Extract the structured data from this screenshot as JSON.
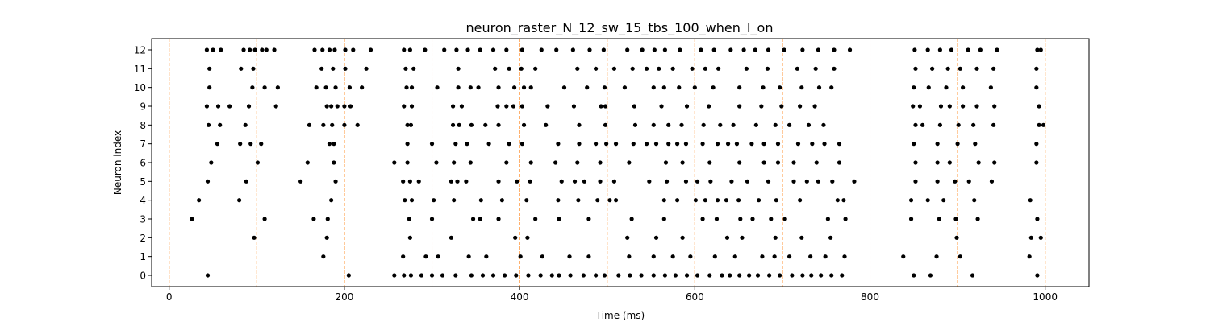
{
  "chart_data": {
    "type": "scatter",
    "title": "neuron_raster_N_12_sw_15_tbs_100_when_I_on",
    "xlabel": "Time (ms)",
    "ylabel": "Neuron index",
    "xlim": [
      -20,
      1050
    ],
    "ylim": [
      -0.6,
      12.6
    ],
    "xticks": [
      0,
      200,
      400,
      600,
      800,
      1000
    ],
    "yticks": [
      0,
      1,
      2,
      3,
      4,
      5,
      6,
      7,
      8,
      9,
      10,
      11,
      12
    ],
    "grid": false,
    "marker_color": "#000000",
    "vline_color": "#ff7f0e",
    "vlines": [
      0,
      100,
      200,
      300,
      400,
      500,
      600,
      700,
      800,
      900,
      1000
    ],
    "spikes": [
      {
        "neuron": 0,
        "times": [
          44,
          205,
          257,
          268,
          276,
          288,
          300,
          312,
          327,
          345,
          358,
          370,
          383,
          396,
          410,
          424,
          437,
          445,
          458,
          473,
          487,
          497,
          513,
          526,
          539,
          553,
          566,
          578,
          591,
          603,
          617,
          631,
          640,
          651,
          662,
          672,
          685,
          697,
          711,
          723,
          733,
          744,
          756,
          768,
          850,
          869,
          917,
          991
        ]
      },
      {
        "neuron": 1,
        "times": [
          176,
          267,
          293,
          307,
          342,
          362,
          401,
          426,
          457,
          479,
          525,
          553,
          575,
          595,
          623,
          646,
          677,
          691,
          708,
          732,
          749,
          771,
          838,
          876,
          903,
          982
        ]
      },
      {
        "neuron": 2,
        "times": [
          97,
          180,
          275,
          322,
          395,
          409,
          523,
          556,
          586,
          637,
          654,
          692,
          722,
          755,
          899,
          984,
          995
        ]
      },
      {
        "neuron": 3,
        "times": [
          26,
          109,
          165,
          181,
          274,
          300,
          347,
          355,
          376,
          418,
          445,
          479,
          528,
          565,
          609,
          625,
          652,
          666,
          687,
          703,
          752,
          772,
          847,
          879,
          898,
          923,
          991
        ]
      },
      {
        "neuron": 4,
        "times": [
          34,
          80,
          185,
          269,
          277,
          302,
          325,
          356,
          380,
          408,
          444,
          467,
          489,
          503,
          510,
          565,
          580,
          601,
          612,
          626,
          636,
          650,
          673,
          693,
          720,
          763,
          770,
          847,
          866,
          884,
          919,
          983
        ]
      },
      {
        "neuron": 5,
        "times": [
          44,
          88,
          150,
          190,
          267,
          275,
          285,
          322,
          329,
          339,
          376,
          397,
          412,
          448,
          463,
          474,
          492,
          508,
          548,
          568,
          590,
          603,
          618,
          642,
          660,
          684,
          713,
          728,
          741,
          757,
          782,
          852,
          877,
          897,
          913,
          939
        ]
      },
      {
        "neuron": 6,
        "times": [
          48,
          101,
          158,
          188,
          257,
          272,
          305,
          325,
          344,
          385,
          413,
          441,
          466,
          492,
          525,
          567,
          586,
          617,
          651,
          679,
          695,
          713,
          739,
          765,
          852,
          877,
          891,
          924,
          942,
          990
        ]
      },
      {
        "neuron": 7,
        "times": [
          55,
          81,
          93,
          105,
          183,
          188,
          272,
          300,
          327,
          340,
          365,
          388,
          403,
          444,
          468,
          487,
          499,
          510,
          530,
          545,
          556,
          570,
          580,
          590,
          609,
          626,
          638,
          648,
          665,
          679,
          695,
          718,
          734,
          748,
          765,
          850,
          877,
          900,
          920,
          990
        ]
      },
      {
        "neuron": 8,
        "times": [
          45,
          58,
          87,
          160,
          176,
          186,
          200,
          215,
          272,
          276,
          324,
          331,
          345,
          361,
          376,
          405,
          430,
          468,
          498,
          532,
          553,
          570,
          585,
          610,
          629,
          644,
          670,
          692,
          708,
          730,
          747,
          852,
          860,
          880,
          901,
          918,
          941,
          993,
          998
        ]
      },
      {
        "neuron": 9,
        "times": [
          43,
          56,
          69,
          91,
          122,
          180,
          185,
          192,
          200,
          207,
          268,
          277,
          324,
          334,
          375,
          385,
          393,
          403,
          432,
          462,
          493,
          498,
          531,
          562,
          591,
          616,
          651,
          676,
          699,
          720,
          737,
          849,
          857,
          881,
          891,
          906,
          922,
          942,
          993
        ]
      },
      {
        "neuron": 10,
        "times": [
          46,
          95,
          109,
          124,
          168,
          179,
          190,
          206,
          220,
          271,
          277,
          306,
          330,
          344,
          353,
          376,
          394,
          405,
          413,
          451,
          477,
          497,
          520,
          553,
          565,
          582,
          600,
          621,
          651,
          678,
          697,
          722,
          742,
          756,
          850,
          867,
          887,
          906,
          938,
          990
        ]
      },
      {
        "neuron": 11,
        "times": [
          46,
          82,
          96,
          174,
          187,
          201,
          225,
          270,
          279,
          330,
          372,
          388,
          402,
          418,
          466,
          487,
          508,
          529,
          545,
          559,
          575,
          597,
          612,
          627,
          659,
          683,
          717,
          738,
          759,
          852,
          871,
          889,
          903,
          922,
          941,
          990
        ]
      },
      {
        "neuron": 12,
        "times": [
          43,
          50,
          59,
          85,
          92,
          98,
          106,
          111,
          120,
          166,
          175,
          183,
          189,
          201,
          210,
          230,
          268,
          275,
          292,
          314,
          328,
          341,
          355,
          370,
          385,
          403,
          425,
          442,
          461,
          480,
          496,
          523,
          540,
          554,
          566,
          583,
          607,
          622,
          641,
          656,
          669,
          684,
          702,
          723,
          741,
          759,
          777,
          851,
          866,
          880,
          893,
          912,
          926,
          945,
          991,
          995
        ]
      }
    ]
  }
}
